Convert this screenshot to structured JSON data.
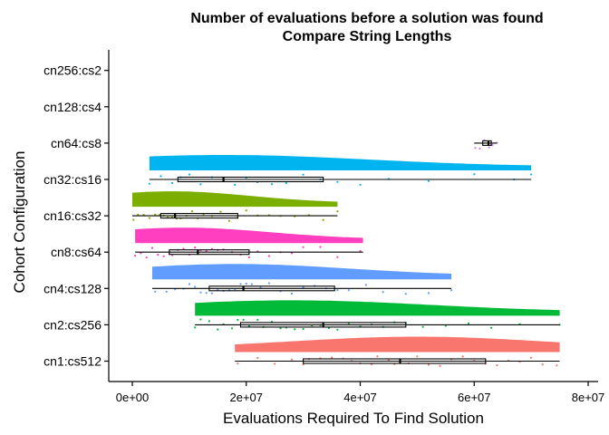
{
  "chart_data": {
    "type": "raincloud",
    "title": [
      "Number of evaluations before a solution was found",
      "Compare String Lengths"
    ],
    "xlabel": "Evaluations Required To Find Solution",
    "ylabel": "Cohort Configuration",
    "xlim": [
      0,
      80000000
    ],
    "x_ticks": [
      {
        "value": 0,
        "label": "0e+00"
      },
      {
        "value": 20000000,
        "label": "2e+07"
      },
      {
        "value": 40000000,
        "label": "4e+07"
      },
      {
        "value": 60000000,
        "label": "6e+07"
      },
      {
        "value": 80000000,
        "label": "8e+07"
      }
    ],
    "categories": [
      "cn1:cs512",
      "cn2:cs256",
      "cn4:cs128",
      "cn8:cs64",
      "cn16:cs32",
      "cn32:cs16",
      "cn64:cs8",
      "cn128:cs4",
      "cn256:cs2"
    ],
    "grid": false,
    "legend": "none",
    "series": [
      {
        "category": "cn1:cs512",
        "color": "#F8766D",
        "min": 18000000,
        "q1": 30000000,
        "median": 47000000,
        "q3": 62000000,
        "max": 75000000,
        "peak": 50000000,
        "points": [
          18500000,
          22000000,
          25000000,
          28000000,
          30000000,
          31000000,
          33000000,
          35000000,
          37000000,
          38500000,
          40000000,
          42000000,
          43000000,
          45000000,
          46000000,
          47000000,
          48500000,
          50000000,
          52000000,
          54000000,
          56000000,
          58000000,
          60000000,
          62000000,
          64000000,
          66000000,
          68000000,
          70000000,
          72000000,
          74500000
        ]
      },
      {
        "category": "cn2:cs256",
        "color": "#00BA38",
        "min": 11000000,
        "q1": 19000000,
        "median": 33500000,
        "q3": 48000000,
        "max": 75000000,
        "peak": 28000000,
        "points": [
          11000000,
          12000000,
          13500000,
          15000000,
          16000000,
          17500000,
          18500000,
          19500000,
          20500000,
          22000000,
          23000000,
          24500000,
          26000000,
          27000000,
          28500000,
          30000000,
          31500000,
          33000000,
          34500000,
          36000000,
          38000000,
          40000000,
          42000000,
          44000000,
          46000000,
          48000000,
          51000000,
          55000000,
          59000000,
          63000000,
          68000000,
          75000000
        ]
      },
      {
        "category": "cn4:cs128",
        "color": "#619CFF",
        "min": 3500000,
        "q1": 13500000,
        "median": 19500000,
        "q3": 35500000,
        "max": 56000000,
        "peak": 18000000,
        "points": [
          4000000,
          6000000,
          7500000,
          9000000,
          10000000,
          11000000,
          12000000,
          13000000,
          14000000,
          15000000,
          16000000,
          17000000,
          18000000,
          19000000,
          20000000,
          21000000,
          22500000,
          24000000,
          26000000,
          28000000,
          30000000,
          32000000,
          34000000,
          36000000,
          38000000,
          41000000,
          44000000,
          48000000,
          52000000,
          56000000
        ]
      },
      {
        "category": "cn8:cs64",
        "color": "#FF3FBF",
        "min": 500000,
        "q1": 6500000,
        "median": 11500000,
        "q3": 20500000,
        "max": 40500000,
        "peak": 9000000,
        "points": [
          500000,
          1500000,
          2500000,
          3500000,
          4500000,
          5500000,
          6500000,
          7000000,
          8000000,
          9000000,
          10000000,
          11000000,
          12000000,
          13000000,
          14000000,
          15000000,
          16000000,
          17500000,
          19000000,
          20500000,
          22000000,
          24000000,
          26000000,
          28000000,
          30000000,
          33000000,
          36000000,
          40000000
        ]
      },
      {
        "category": "cn16:cs32",
        "color": "#7CAE00",
        "min": 0,
        "q1": 5000000,
        "median": 7500000,
        "q3": 18500000,
        "max": 36000000,
        "peak": 7000000,
        "points": [
          200000,
          1000000,
          2000000,
          3000000,
          4000000,
          4800000,
          5500000,
          6200000,
          7000000,
          7800000,
          8500000,
          9500000,
          10500000,
          11500000,
          12500000,
          14000000,
          15500000,
          17000000,
          18500000,
          20000000,
          22000000,
          24000000,
          26000000,
          28500000,
          31000000,
          33500000,
          36000000
        ]
      },
      {
        "category": "cn32:cs16",
        "color": "#00B4EF",
        "min": 3000000,
        "q1": 8000000,
        "median": 16000000,
        "q3": 33500000,
        "max": 70000000,
        "peak": 16000000,
        "points": [
          3000000,
          5000000,
          7000000,
          8500000,
          10000000,
          12000000,
          14000000,
          16000000,
          18000000,
          20000000,
          22000000,
          24500000,
          27000000,
          30000000,
          33000000,
          36000000,
          40000000,
          45000000,
          52000000,
          60000000,
          67000000,
          70000000
        ]
      },
      {
        "category": "cn64:cs8",
        "color": "#C77CFF",
        "min": 60000000,
        "q1": 61500000,
        "median": 62500000,
        "q3": 63000000,
        "max": 64000000,
        "peak": 0,
        "points": [
          60200000,
          61000000,
          61800000,
          62600000,
          63200000,
          64000000
        ]
      },
      {
        "category": "cn128:cs4",
        "color": "#E76BF3",
        "points": []
      },
      {
        "category": "cn256:cs2",
        "color": "#FF62BC",
        "points": []
      }
    ]
  }
}
